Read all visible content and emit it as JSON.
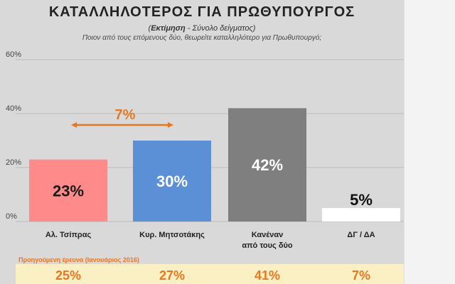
{
  "header": {
    "title": "ΚΑΤΑΛΛΗΛΟΤΕΡΟΣ ΓΙΑ ΠΡΩΘΥΠΟΥΡΓΟΣ",
    "subtitle_bold": "Εκτίμηση",
    "subtitle_rest": " - Σύνολο δείγματος)",
    "subtitle_open": "(",
    "question": "Ποιον από τους επόμενους δύο, θεωρείτε καταλληλότερο για Πρωθυπουργό;"
  },
  "chart_data": {
    "type": "bar",
    "title": "ΚΑΤΑΛΛΗΛΟΤΕΡΟΣ ΓΙΑ ΠΡΩΘΥΠΟΥΡΓΟΣ",
    "categories": [
      "Αλ. Τσίπρας",
      "Κυρ. Μητσοτάκης",
      "Κανέναν|από τους δύο",
      "ΔΓ / ΔΑ"
    ],
    "values": [
      23,
      30,
      42,
      5
    ],
    "data_labels": [
      "23%",
      "30%",
      "42%",
      "5%"
    ],
    "bar_colors": [
      "#ff8a8a",
      "#5b8fd6",
      "#7f7f7f",
      "#ffffff"
    ],
    "label_colors": [
      "#1a1a1a",
      "#ffffff",
      "#ffffff",
      "#111111"
    ],
    "ylim": [
      0,
      60
    ],
    "yticks": [
      0,
      20,
      40,
      60
    ],
    "ytick_labels": [
      "0%",
      "20%",
      "40%",
      "60%"
    ],
    "grid": true,
    "annotation": {
      "text": "7%",
      "from_category": 0,
      "to_category": 1,
      "color": "#e87722"
    },
    "previous": {
      "label": "Προηγούμενη έρευνα (Ιανουάριος 2016)",
      "values": [
        "25%",
        "27%",
        "41%",
        "7%"
      ]
    }
  }
}
